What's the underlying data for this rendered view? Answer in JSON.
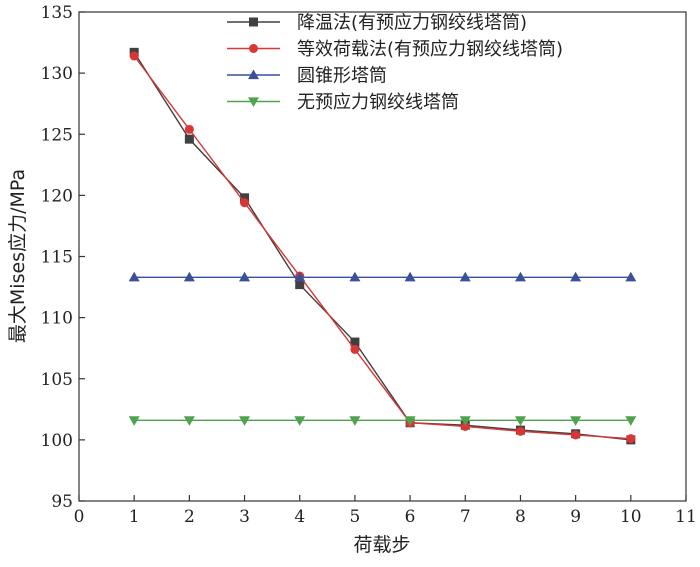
{
  "chart_data": {
    "type": "line",
    "xlabel": "荷载步",
    "ylabel": "最大Mises应力/MPa",
    "xlim": [
      0,
      11
    ],
    "ylim": [
      95,
      135
    ],
    "xticks": [
      0,
      1,
      2,
      3,
      4,
      5,
      6,
      7,
      8,
      9,
      10,
      11
    ],
    "yticks": [
      95,
      100,
      105,
      110,
      115,
      120,
      125,
      130,
      135
    ],
    "x": [
      1,
      2,
      3,
      4,
      5,
      6,
      7,
      8,
      9,
      10
    ],
    "grid": false,
    "legend_position": "top-right",
    "series": [
      {
        "name": "降温法(有预应力钢绞线塔筒)",
        "color": "#404040",
        "marker": "square",
        "values": [
          131.7,
          124.6,
          119.8,
          112.7,
          108.0,
          101.4,
          101.2,
          100.8,
          100.5,
          100.0
        ]
      },
      {
        "name": "等效荷载法(有预应力钢绞线塔筒)",
        "color": "#d93636",
        "marker": "circle",
        "values": [
          131.4,
          125.4,
          119.4,
          113.4,
          107.4,
          101.4,
          101.1,
          100.7,
          100.4,
          100.1
        ]
      },
      {
        "name": "圆锥形塔筒",
        "color": "#3b4f9a",
        "marker": "triangle-up",
        "values": [
          113.3,
          113.3,
          113.3,
          113.3,
          113.3,
          113.3,
          113.3,
          113.3,
          113.3,
          113.3
        ]
      },
      {
        "name": "无预应力钢绞线塔筒",
        "color": "#4fa34f",
        "marker": "triangle-down",
        "values": [
          101.6,
          101.6,
          101.6,
          101.6,
          101.6,
          101.6,
          101.6,
          101.6,
          101.6,
          101.6
        ]
      }
    ]
  }
}
